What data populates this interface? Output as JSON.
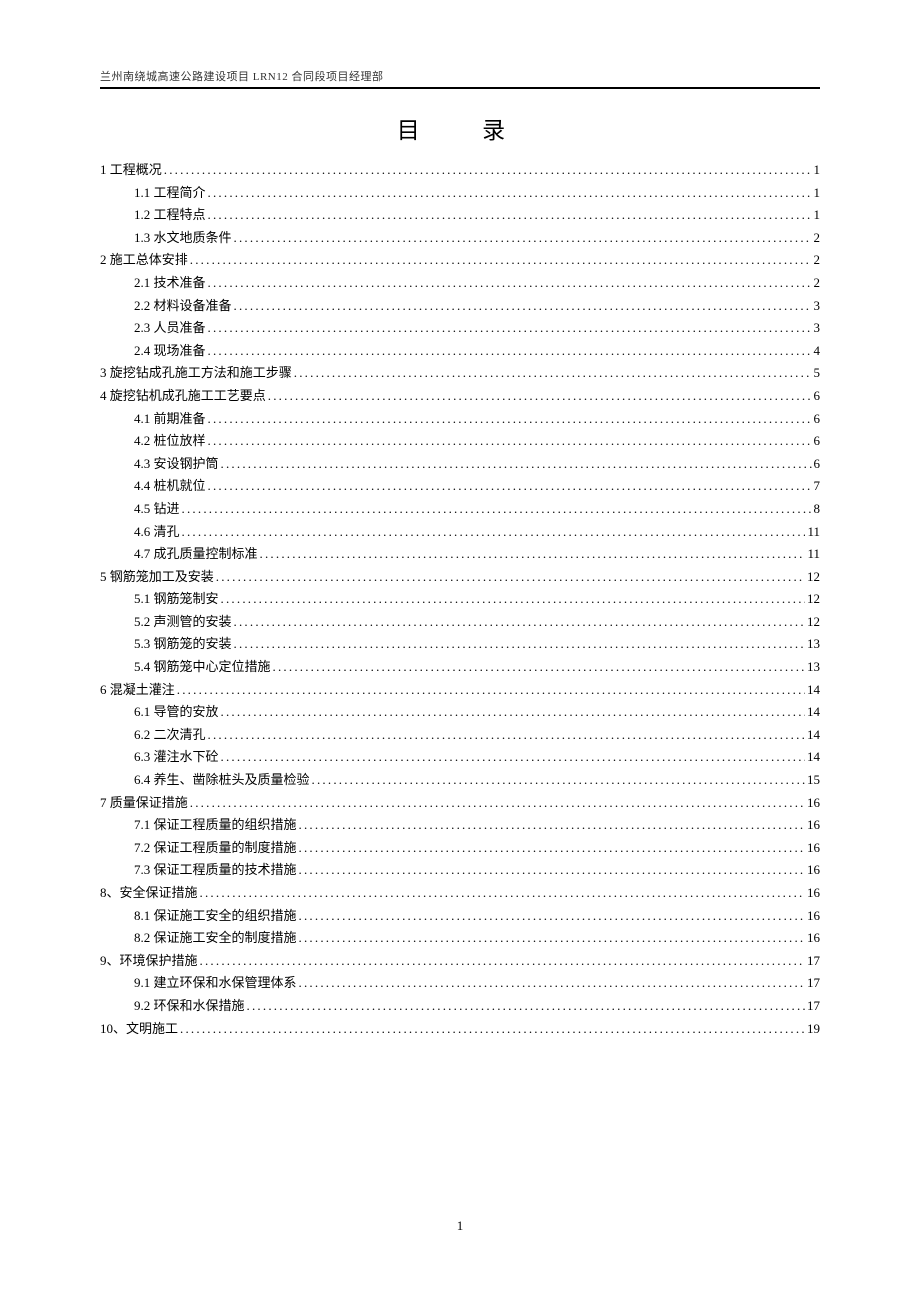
{
  "header": "兰州南绕城高速公路建设项目 LRN12 合同段项目经理部",
  "title": "目   录",
  "page_number": "1",
  "toc": [
    {
      "level": 1,
      "label": "1  工程概况",
      "page": "1"
    },
    {
      "level": 2,
      "label": "1.1  工程简介",
      "page": "1"
    },
    {
      "level": 2,
      "label": "1.2  工程特点",
      "page": "1"
    },
    {
      "level": 2,
      "label": "1.3  水文地质条件",
      "page": "2"
    },
    {
      "level": 1,
      "label": "2 施工总体安排",
      "page": "2"
    },
    {
      "level": 2,
      "label": "2.1 技术准备",
      "page": "2"
    },
    {
      "level": 2,
      "label": "2.2 材料设备准备",
      "page": "3"
    },
    {
      "level": 2,
      "label": "2.3 人员准备",
      "page": "3"
    },
    {
      "level": 2,
      "label": "2.4 现场准备",
      "page": "4"
    },
    {
      "level": 1,
      "label": "3 旋挖钻成孔施工方法和施工步骤",
      "page": "5"
    },
    {
      "level": 1,
      "label": "4 旋挖钻机成孔施工工艺要点",
      "page": "6"
    },
    {
      "level": 2,
      "label": "4.1 前期准备",
      "page": "6"
    },
    {
      "level": 2,
      "label": "4.2 桩位放样",
      "page": "6"
    },
    {
      "level": 2,
      "label": "4.3 安设钢护筒",
      "page": "6"
    },
    {
      "level": 2,
      "label": "4.4 桩机就位",
      "page": "7"
    },
    {
      "level": 2,
      "label": "4.5 钻进",
      "page": "8"
    },
    {
      "level": 2,
      "label": "4.6 清孔",
      "page": "11"
    },
    {
      "level": 2,
      "label": "4.7 成孔质量控制标准",
      "page": "11"
    },
    {
      "level": 1,
      "label": "5 钢筋笼加工及安装",
      "page": "12"
    },
    {
      "level": 2,
      "label": "5.1 钢筋笼制安",
      "page": "12"
    },
    {
      "level": 2,
      "label": "5.2 声测管的安装",
      "page": "12"
    },
    {
      "level": 2,
      "label": "5.3 钢筋笼的安装",
      "page": "13"
    },
    {
      "level": 2,
      "label": "5.4 钢筋笼中心定位措施",
      "page": "13"
    },
    {
      "level": 1,
      "label": "6 混凝土灌注",
      "page": "14"
    },
    {
      "level": 2,
      "label": "6.1 导管的安放",
      "page": "14"
    },
    {
      "level": 2,
      "label": "6.2 二次清孔",
      "page": "14"
    },
    {
      "level": 2,
      "label": "6.3 灌注水下砼",
      "page": "14"
    },
    {
      "level": 2,
      "label": "6.4 养生、凿除桩头及质量检验",
      "page": "15"
    },
    {
      "level": 1,
      "label": "7 质量保证措施",
      "page": "16"
    },
    {
      "level": 2,
      "label": "7.1 保证工程质量的组织措施",
      "page": "16"
    },
    {
      "level": 2,
      "label": "7.2 保证工程质量的制度措施",
      "page": "16"
    },
    {
      "level": 2,
      "label": "7.3 保证工程质量的技术措施",
      "page": "16"
    },
    {
      "level": 1,
      "label": "8、安全保证措施",
      "page": "16"
    },
    {
      "level": 2,
      "label": "8.1 保证施工安全的组织措施",
      "page": "16"
    },
    {
      "level": 2,
      "label": "8.2 保证施工安全的制度措施",
      "page": "16"
    },
    {
      "level": 1,
      "label": "9、环境保护措施",
      "page": "17"
    },
    {
      "level": 2,
      "label": "9.1 建立环保和水保管理体系",
      "page": "17"
    },
    {
      "level": 2,
      "label": "9.2 环保和水保措施",
      "page": "17"
    },
    {
      "level": 1,
      "label": "10、文明施工",
      "page": "19"
    }
  ]
}
